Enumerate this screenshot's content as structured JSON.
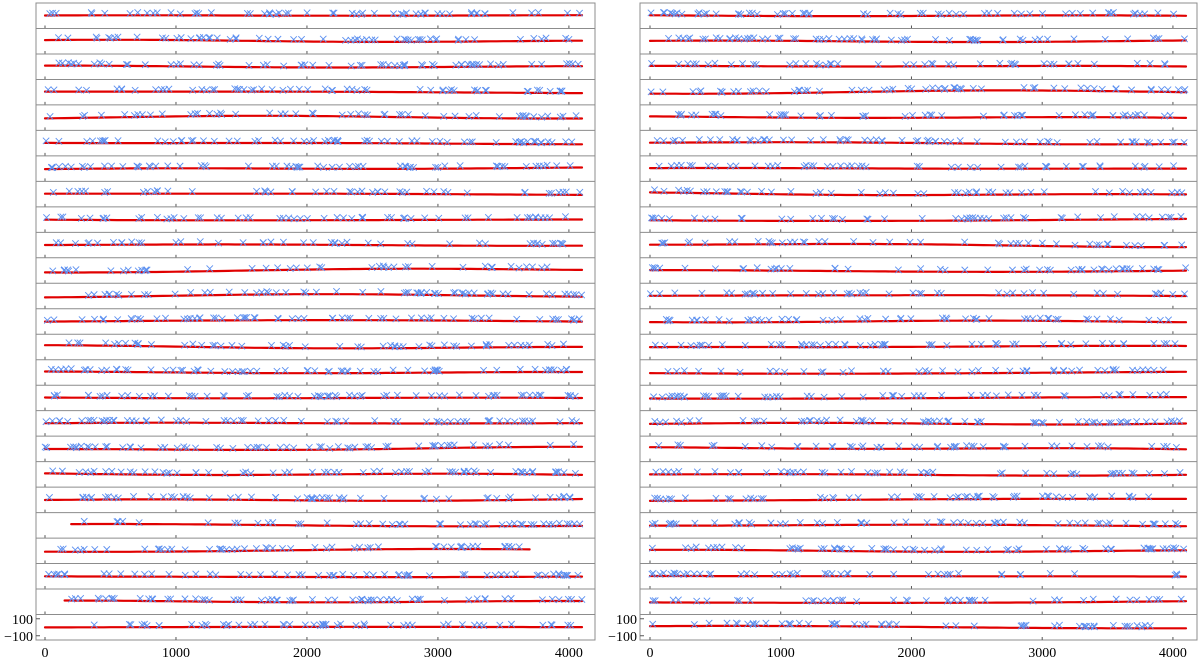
{
  "chart_data": [
    {
      "type": "line",
      "panel": "left",
      "title": "",
      "xlabel": "",
      "ylabel": "",
      "xlim": [
        0,
        4100
      ],
      "x_ticks": [
        "0",
        "1000",
        "2000",
        "3000",
        "4000"
      ],
      "x_tick_values": [
        0,
        1000,
        2000,
        3000,
        4000
      ],
      "y_ticks": [
        "100",
        "−100"
      ],
      "y_tick_values": [
        100,
        -100
      ],
      "strip_ylim": [
        -150,
        150
      ],
      "grid": false,
      "legend": "none",
      "series_color": "#e00000",
      "marker_color": "#5b8ff0",
      "strip_count": 25
    },
    {
      "type": "line",
      "panel": "right",
      "title": "",
      "xlabel": "",
      "ylabel": "",
      "xlim": [
        0,
        4100
      ],
      "x_ticks": [
        "0",
        "1000",
        "2000",
        "3000",
        "4000"
      ],
      "x_tick_values": [
        0,
        1000,
        2000,
        3000,
        4000
      ],
      "y_ticks": [
        "100",
        "−100"
      ],
      "y_tick_values": [
        100,
        -100
      ],
      "strip_ylim": [
        -150,
        150
      ],
      "grid": false,
      "legend": "none",
      "series_color": "#e00000",
      "marker_color": "#5b8ff0",
      "strip_count": 25
    }
  ]
}
